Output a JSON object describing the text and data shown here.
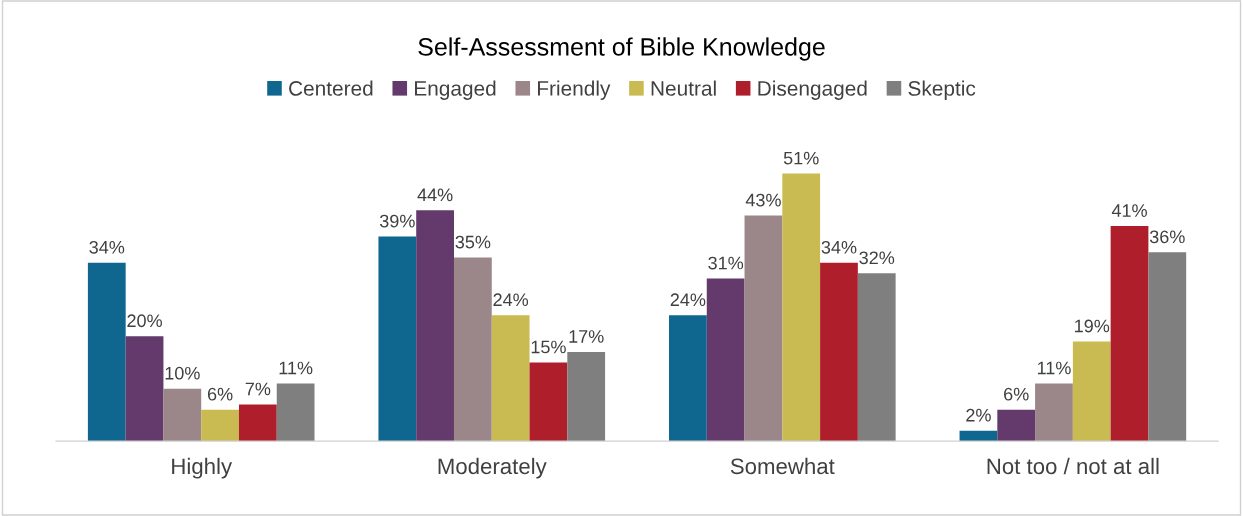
{
  "chart_data": {
    "type": "bar",
    "title": "Self-Assessment of Bible Knowledge",
    "categories": [
      "Highly",
      "Moderately",
      "Somewhat",
      "Not too / not at all"
    ],
    "legend": "top",
    "grid": false,
    "series": [
      {
        "name": "Centered",
        "color": "#0f6790",
        "values": [
          34,
          39,
          24,
          2
        ],
        "value_labels": [
          "34%",
          "39%",
          "24%",
          "2%"
        ]
      },
      {
        "name": "Engaged",
        "color": "#633a6b",
        "values": [
          20,
          44,
          31,
          6
        ],
        "value_labels": [
          "20%",
          "44%",
          "31%",
          "6%"
        ]
      },
      {
        "name": "Friendly",
        "color": "#9b878a",
        "values": [
          10,
          35,
          43,
          11
        ],
        "value_labels": [
          "10%",
          "35%",
          "43%",
          "11%"
        ]
      },
      {
        "name": "Neutral",
        "color": "#c9ba52",
        "values": [
          6,
          24,
          51,
          19
        ],
        "value_labels": [
          "6%",
          "24%",
          "51%",
          "19%"
        ]
      },
      {
        "name": "Disengaged",
        "color": "#af1f2b",
        "values": [
          7,
          15,
          34,
          41
        ],
        "value_labels": [
          "7%",
          "15%",
          "34%",
          "41%"
        ]
      },
      {
        "name": "Skeptic",
        "color": "#7f7f7f",
        "values": [
          11,
          17,
          32,
          36
        ],
        "value_labels": [
          "11%",
          "17%",
          "32%",
          "36%"
        ]
      }
    ]
  }
}
